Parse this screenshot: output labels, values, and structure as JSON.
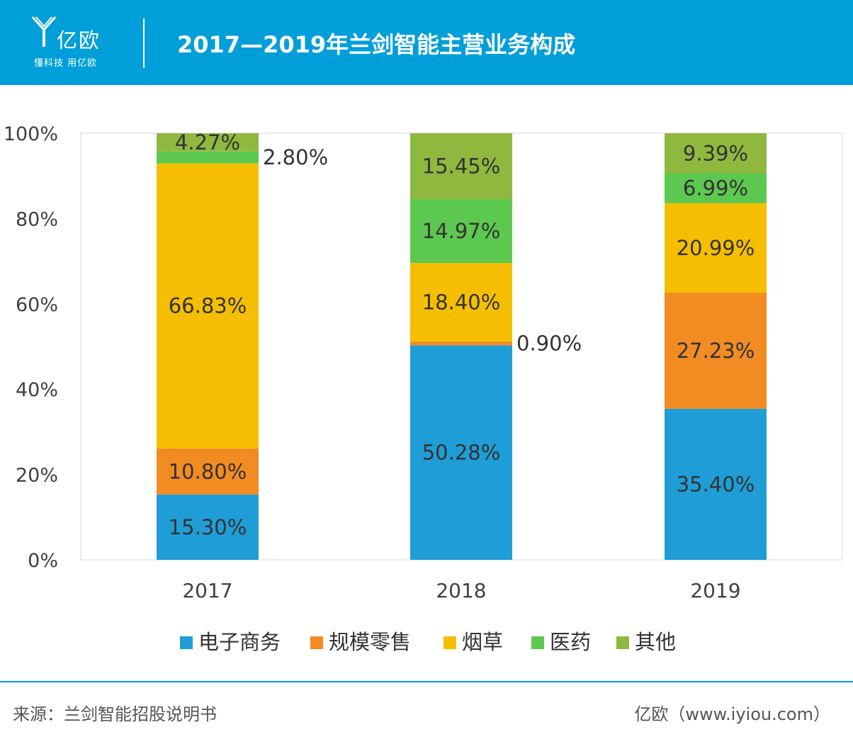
{
  "header": {
    "brand_name": "亿欧",
    "brand_tagline": "懂科技 用亿欧",
    "title": "2017—2019年兰剑智能主营业务构成"
  },
  "footer": {
    "source": "来源：兰剑智能招股说明书",
    "site": "亿欧（www.iyiou.com）"
  },
  "colors": {
    "header_bg": "#009fd9",
    "电子商务": "#1f9dd6",
    "规模零售": "#f28b22",
    "烟草": "#f5be00",
    "医药": "#5cc84f",
    "其他": "#8fb83f"
  },
  "chart_data": {
    "type": "bar",
    "stacked": true,
    "categories": [
      "2017",
      "2018",
      "2019"
    ],
    "series": [
      {
        "name": "电子商务",
        "values": [
          15.3,
          50.28,
          35.4
        ],
        "labels": [
          "15.30%",
          "50.28%",
          "35.40%"
        ]
      },
      {
        "name": "规模零售",
        "values": [
          10.8,
          0.9,
          27.23
        ],
        "labels": [
          "10.80%",
          "0.90%",
          "27.23%"
        ]
      },
      {
        "name": "烟草",
        "values": [
          66.83,
          18.4,
          20.99
        ],
        "labels": [
          "66.83%",
          "18.40%",
          "20.99%"
        ]
      },
      {
        "name": "医药",
        "values": [
          2.8,
          14.97,
          6.99
        ],
        "labels": [
          "2.80%",
          "14.97%",
          "6.99%"
        ]
      },
      {
        "name": "其他",
        "values": [
          4.27,
          15.45,
          9.39
        ],
        "labels": [
          "4.27%",
          "15.45%",
          "9.39%"
        ]
      }
    ],
    "yticks": [
      "0%",
      "20%",
      "40%",
      "60%",
      "80%",
      "100%"
    ],
    "ylim": [
      0,
      100
    ],
    "grid": false,
    "legend_position": "bottom"
  }
}
